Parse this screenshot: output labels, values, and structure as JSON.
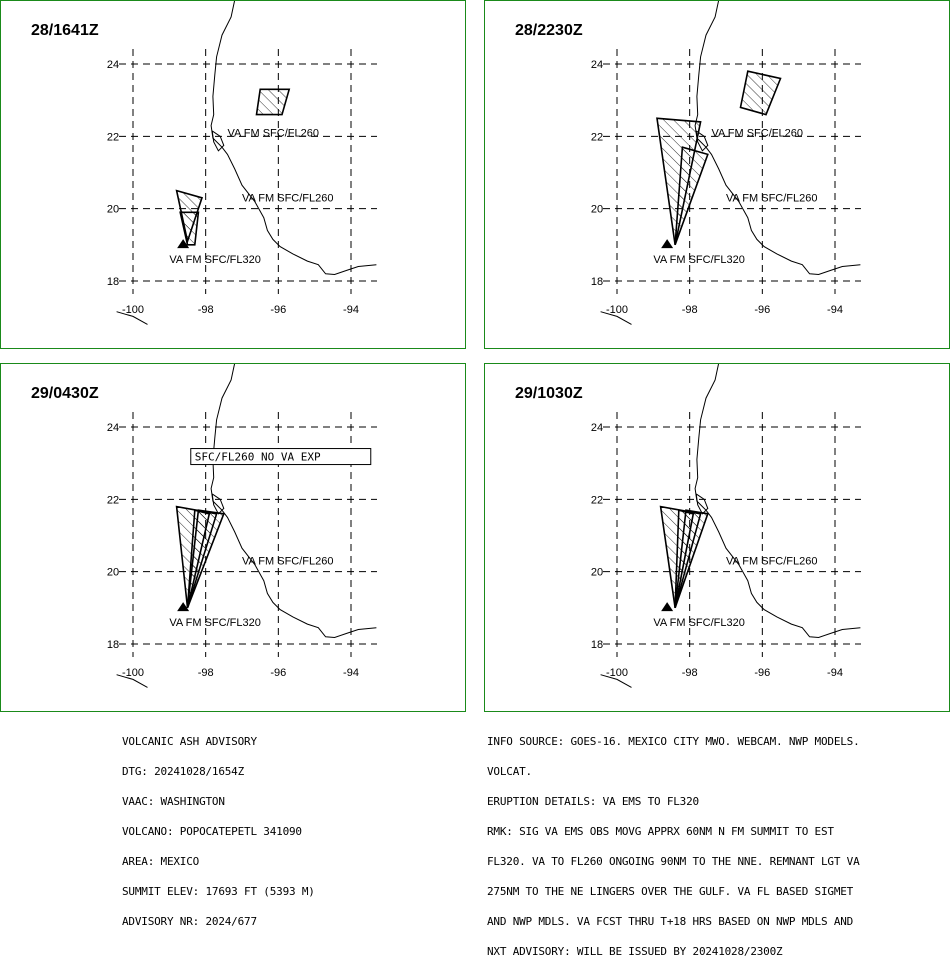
{
  "panels": [
    {
      "time": "28/1641Z",
      "polygons": [
        [
          [
            -98.5,
            19.0
          ],
          [
            -98.3,
            19.0
          ],
          [
            -98.2,
            19.9
          ],
          [
            -98.7,
            19.9
          ]
        ],
        [
          [
            -98.5,
            19.1
          ],
          [
            -98.1,
            20.3
          ],
          [
            -98.8,
            20.5
          ]
        ],
        [
          [
            -96.5,
            23.3
          ],
          [
            -95.7,
            23.3
          ],
          [
            -95.9,
            22.6
          ],
          [
            -96.6,
            22.6
          ]
        ]
      ],
      "labels": [
        {
          "text": "VA FM SFC/FL260",
          "lon": -97.4,
          "lat": 22.0
        },
        {
          "text": "VA FM SFC/FL260",
          "lon": -97.0,
          "lat": 20.2
        },
        {
          "text": "VA FM SFC/FL320",
          "lon": -99.0,
          "lat": 18.5
        }
      ]
    },
    {
      "time": "28/2230Z",
      "polygons": [
        [
          [
            -98.4,
            19.0
          ],
          [
            -98.4,
            19.0
          ],
          [
            -97.7,
            22.4
          ],
          [
            -98.9,
            22.5
          ]
        ],
        [
          [
            -98.4,
            19.0
          ],
          [
            -97.5,
            21.5
          ],
          [
            -98.2,
            21.7
          ]
        ],
        [
          [
            -96.4,
            23.8
          ],
          [
            -95.5,
            23.6
          ],
          [
            -95.9,
            22.6
          ],
          [
            -96.6,
            22.8
          ]
        ]
      ],
      "labels": [
        {
          "text": "VA FM SFC/FL260",
          "lon": -97.4,
          "lat": 22.0
        },
        {
          "text": "VA FM SFC/FL260",
          "lon": -97.0,
          "lat": 20.2
        },
        {
          "text": "VA FM SFC/FL320",
          "lon": -99.0,
          "lat": 18.5
        }
      ]
    },
    {
      "time": "29/0430Z",
      "polygons": [
        [
          [
            -98.5,
            19.0
          ],
          [
            -97.7,
            21.6
          ],
          [
            -98.8,
            21.8
          ]
        ],
        [
          [
            -98.5,
            19.0
          ],
          [
            -97.5,
            21.6
          ],
          [
            -98.2,
            21.7
          ]
        ],
        [
          [
            -98.5,
            19.0
          ],
          [
            -97.9,
            21.6
          ],
          [
            -98.3,
            21.7
          ]
        ]
      ],
      "labels": [
        {
          "text": "VA FM SFC/FL260",
          "lon": -97.0,
          "lat": 20.2
        },
        {
          "text": "VA FM SFC/FL320",
          "lon": -99.0,
          "lat": 18.5
        }
      ],
      "box_label": {
        "text": "SFC/FL260 NO VA EXP",
        "lon": -98.3,
        "lat": 23.1
      }
    },
    {
      "time": "29/1030Z",
      "polygons": [
        [
          [
            -98.4,
            19.0
          ],
          [
            -97.7,
            21.6
          ],
          [
            -98.8,
            21.8
          ]
        ],
        [
          [
            -98.4,
            19.0
          ],
          [
            -97.5,
            21.6
          ],
          [
            -98.1,
            21.7
          ]
        ],
        [
          [
            -98.4,
            19.0
          ],
          [
            -97.9,
            21.6
          ],
          [
            -98.3,
            21.7
          ]
        ]
      ],
      "labels": [
        {
          "text": "VA FM SFC/FL260",
          "lon": -97.0,
          "lat": 20.2
        },
        {
          "text": "VA FM SFC/FL320",
          "lon": -99.0,
          "lat": 18.5
        }
      ]
    }
  ],
  "axes": {
    "lon_ticks": [
      -100,
      -98,
      -96,
      -94
    ],
    "lat_ticks": [
      24,
      22,
      20,
      18
    ],
    "lon_labels": [
      "-100",
      "-98",
      "-96",
      "-94"
    ],
    "lat_labels": [
      "24",
      "22",
      "20",
      "18"
    ]
  },
  "volcano": {
    "lon": -98.62,
    "lat": 19.02
  },
  "advisory_left": [
    "VOLCANIC ASH ADVISORY",
    "DTG: 20241028/1654Z",
    "VAAC: WASHINGTON",
    "VOLCANO: POPOCATEPETL 341090",
    "AREA: MEXICO",
    "SUMMIT ELEV: 17693 FT (5393 M)",
    "ADVISORY NR: 2024/677"
  ],
  "advisory_right": [
    "INFO SOURCE: GOES-16. MEXICO CITY MWO. WEBCAM. NWP MODELS.",
    "VOLCAT.",
    "ERUPTION DETAILS: VA EMS TO FL320",
    "RMK: SIG VA EMS OBS MOVG APPRX 60NM N FM SUMMIT TO EST",
    "FL320. VA TO FL260 ONGOING 90NM TO THE NNE. REMNANT LGT VA",
    "275NM TO THE NE LINGERS OVER THE GULF. VA FL BASED SIGMET",
    "AND NWP MDLS. VA FCST THRU T+18 HRS BASED ON NWP MDLS AND",
    "NXT ADVISORY: WILL BE ISSUED BY 20241028/2300Z"
  ],
  "colors": {
    "panel_border": "#1a8a1a",
    "coast": "#000000",
    "grid": "#000000"
  }
}
